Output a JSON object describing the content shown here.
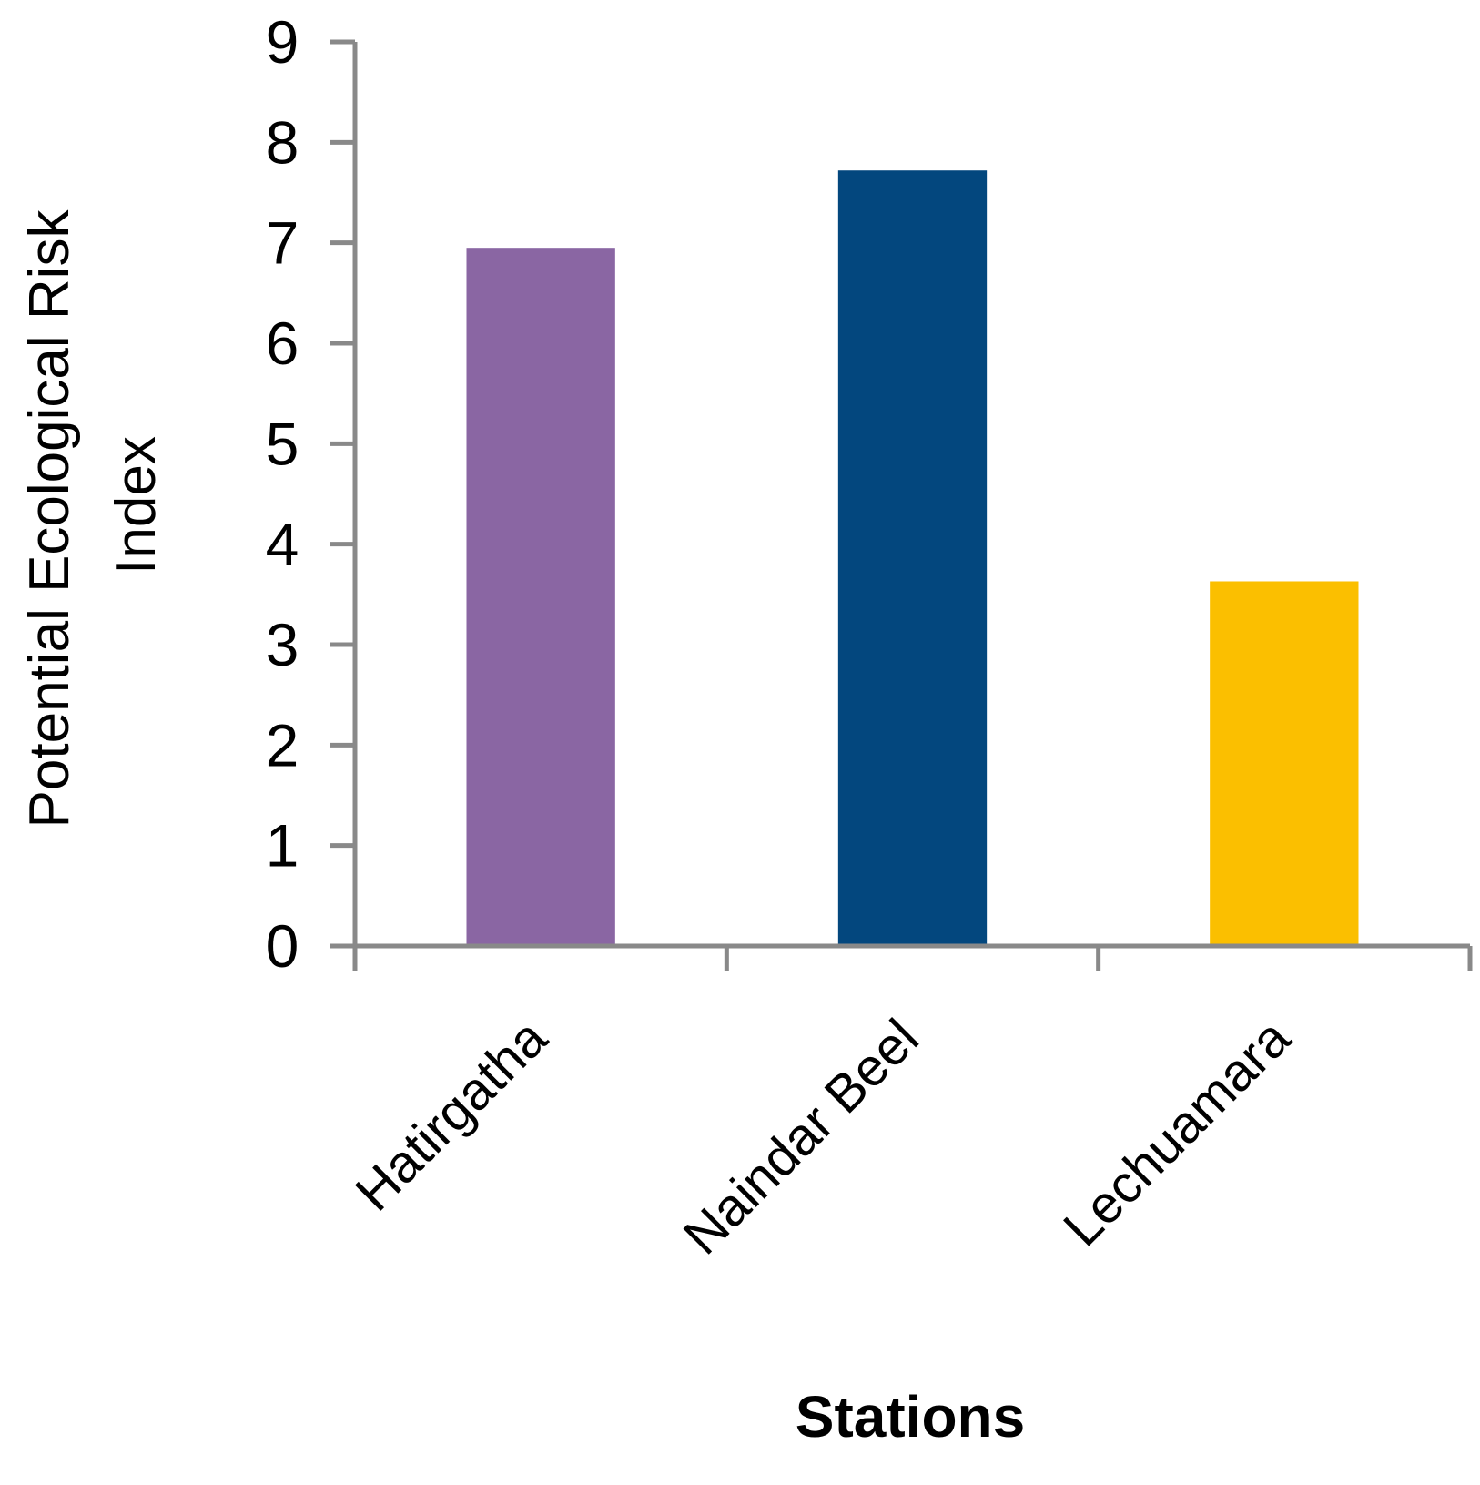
{
  "chart_data": {
    "type": "bar",
    "title": "",
    "categories": [
      "Hatirgatha",
      "Naindar Beel",
      "Lechuamara"
    ],
    "values": [
      6.95,
      7.72,
      3.63
    ],
    "colors": [
      "#8a66a3",
      "#03477e",
      "#fbbf00"
    ],
    "xlabel": "Stations",
    "ylabel_lines": [
      "Potential Ecological Risk",
      "Index"
    ],
    "ylim": [
      0,
      9
    ],
    "yticks": [
      "0",
      "1",
      "2",
      "3",
      "4",
      "5",
      "6",
      "7",
      "8",
      "9"
    ],
    "grid": false,
    "legend": "none",
    "axis_color": "#898989"
  }
}
